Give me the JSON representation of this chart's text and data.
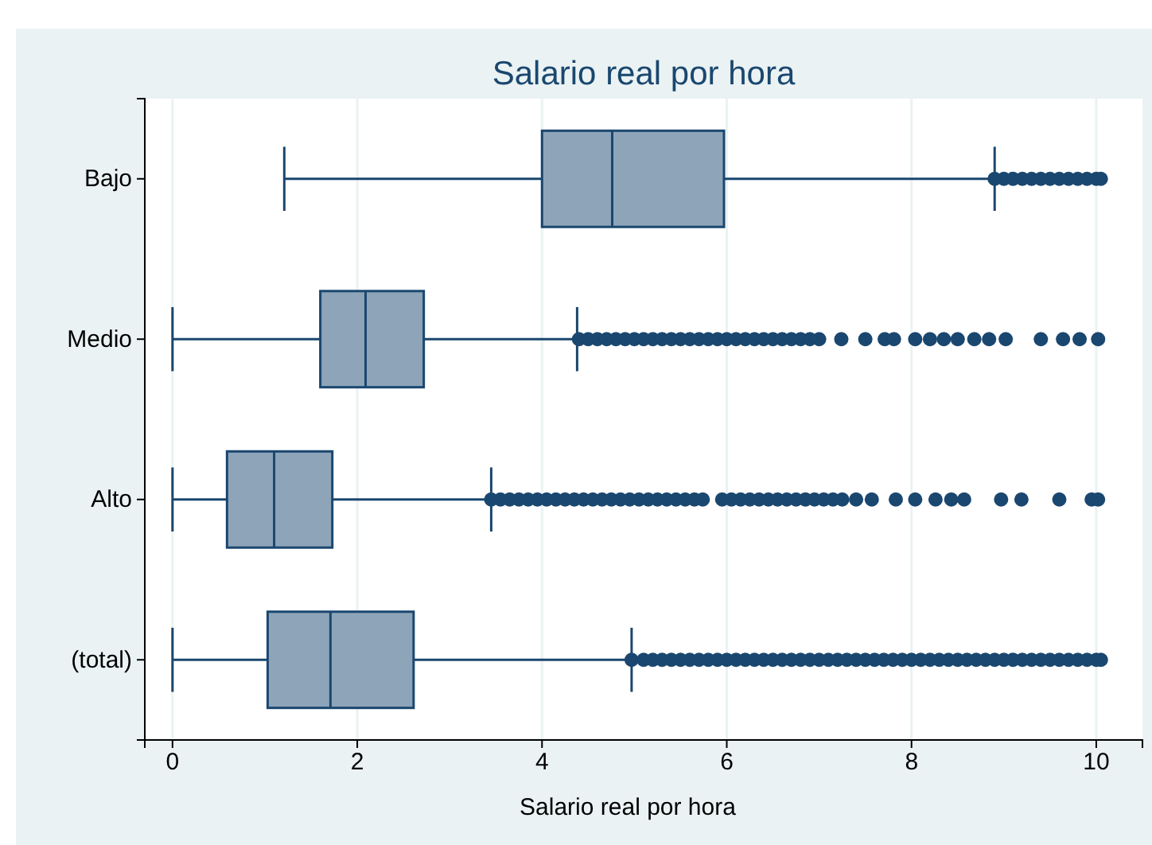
{
  "chart_data": {
    "type": "box",
    "title": "Salario real por hora",
    "xlabel": "Salario real por hora",
    "orientation": "horizontal",
    "categories": [
      "Bajo",
      "Medio",
      "Alto",
      "(total)"
    ],
    "color": "#8ea4b9",
    "boxes": [
      {
        "low": 1.21,
        "q1": 4.0,
        "median": 4.76,
        "q3": 5.97,
        "high": 8.9,
        "outliers": [
          8.9,
          9.0,
          9.1,
          9.2,
          9.3,
          9.4,
          9.5,
          9.6,
          9.7,
          9.8,
          9.9,
          10.0,
          10.05
        ]
      },
      {
        "low": 0,
        "q1": 1.6,
        "median": 2.09,
        "q3": 2.72,
        "high": 4.38,
        "outliers": [
          4.4,
          4.5,
          4.6,
          4.7,
          4.8,
          4.9,
          5.0,
          5.1,
          5.2,
          5.3,
          5.4,
          5.5,
          5.6,
          5.7,
          5.8,
          5.9,
          6.0,
          6.1,
          6.2,
          6.3,
          6.4,
          6.5,
          6.6,
          6.7,
          6.8,
          6.9,
          7.0,
          7.24,
          7.5,
          7.71,
          7.81,
          8.04,
          8.2,
          8.35,
          8.5,
          8.68,
          8.84,
          9.02,
          9.4,
          9.64,
          9.82,
          10.02
        ]
      },
      {
        "low": 0,
        "q1": 0.59,
        "median": 1.1,
        "q3": 1.73,
        "high": 3.45,
        "outliers": [
          3.45,
          3.55,
          3.65,
          3.75,
          3.85,
          3.95,
          4.05,
          4.15,
          4.25,
          4.35,
          4.45,
          4.55,
          4.65,
          4.75,
          4.85,
          4.95,
          5.05,
          5.15,
          5.25,
          5.35,
          5.45,
          5.55,
          5.65,
          5.74,
          5.95,
          6.05,
          6.15,
          6.25,
          6.35,
          6.45,
          6.55,
          6.65,
          6.75,
          6.85,
          6.95,
          7.05,
          7.15,
          7.25,
          7.4,
          7.57,
          7.83,
          8.04,
          8.26,
          8.43,
          8.57,
          8.97,
          9.19,
          9.6,
          9.95,
          10.02
        ]
      },
      {
        "low": 0,
        "q1": 1.03,
        "median": 1.71,
        "q3": 2.61,
        "high": 4.97,
        "outliers": [
          4.97,
          5.1,
          5.2,
          5.3,
          5.4,
          5.5,
          5.6,
          5.7,
          5.8,
          5.9,
          6.0,
          6.1,
          6.2,
          6.3,
          6.4,
          6.5,
          6.6,
          6.7,
          6.8,
          6.9,
          7.0,
          7.1,
          7.2,
          7.3,
          7.4,
          7.5,
          7.6,
          7.7,
          7.8,
          7.9,
          8.0,
          8.1,
          8.2,
          8.3,
          8.4,
          8.5,
          8.6,
          8.7,
          8.8,
          8.9,
          9.0,
          9.1,
          9.2,
          9.3,
          9.4,
          9.5,
          9.6,
          9.7,
          9.8,
          9.9,
          10.0,
          10.05
        ]
      }
    ],
    "xlim": [
      -0.3,
      10.5
    ],
    "xticks": [
      0,
      2,
      4,
      6,
      8,
      10
    ],
    "grid": "x"
  }
}
